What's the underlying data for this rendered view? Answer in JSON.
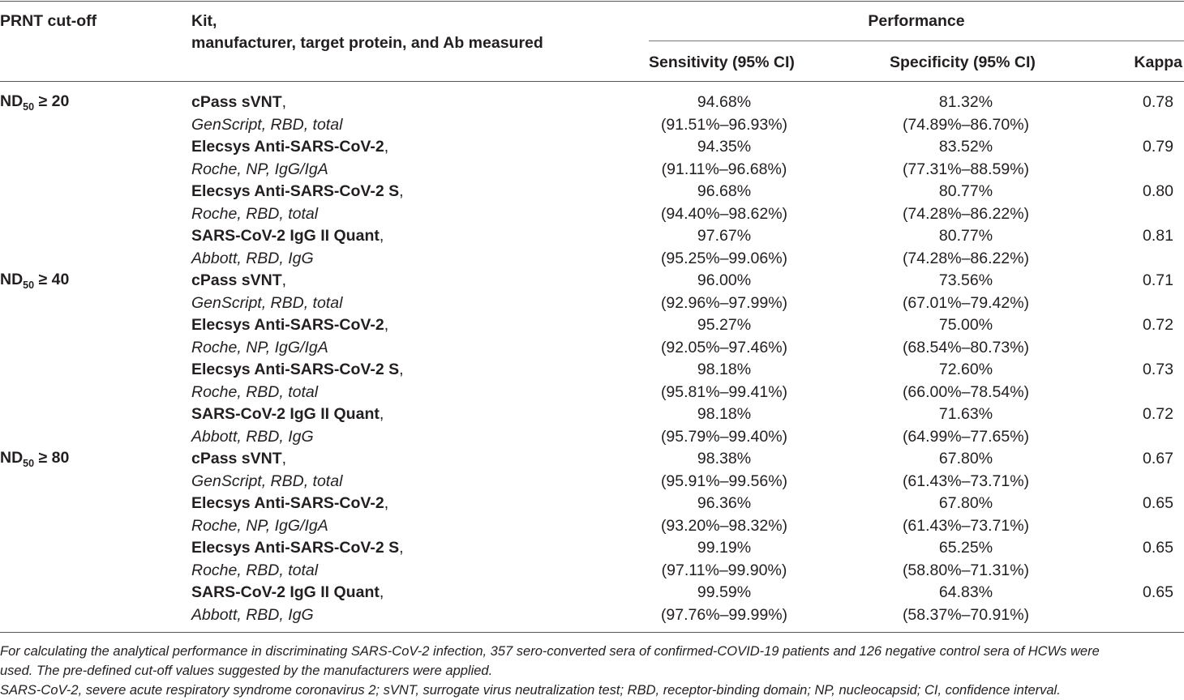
{
  "header": {
    "cutoff": "PRNT cut-off",
    "kit_line1": "Kit,",
    "kit_line2": "manufacturer, target protein, and Ab measured",
    "performance": "Performance",
    "sensitivity": "Sensitivity (95% CI)",
    "specificity": "Specificity (95% CI)",
    "kappa": "Kappa"
  },
  "groups": [
    {
      "cutoff_prefix": "ND",
      "cutoff_sub": "50",
      "cutoff_suffix": " ≥ 20",
      "rows": [
        {
          "kit": "cPass sVNT",
          "details": "GenScript, RBD, total",
          "sens": "94.68%",
          "sens_ci": "(91.51%–96.93%)",
          "spec": "81.32%",
          "spec_ci": "(74.89%–86.70%)",
          "kappa": "0.78"
        },
        {
          "kit": "Elecsys Anti-SARS-CoV-2",
          "details": "Roche, NP, IgG/IgA",
          "sens": "94.35%",
          "sens_ci": "(91.11%–96.68%)",
          "spec": "83.52%",
          "spec_ci": "(77.31%–88.59%)",
          "kappa": "0.79"
        },
        {
          "kit": "Elecsys Anti-SARS-CoV-2 S",
          "details": "Roche, RBD, total",
          "sens": "96.68%",
          "sens_ci": "(94.40%–98.62%)",
          "spec": "80.77%",
          "spec_ci": "(74.28%–86.22%)",
          "kappa": "0.80"
        },
        {
          "kit": "SARS-CoV-2 IgG II Quant",
          "details": "Abbott, RBD, IgG",
          "sens": "97.67%",
          "sens_ci": "(95.25%–99.06%)",
          "spec": "80.77%",
          "spec_ci": "(74.28%–86.22%)",
          "kappa": "0.81"
        }
      ]
    },
    {
      "cutoff_prefix": "ND",
      "cutoff_sub": "50",
      "cutoff_suffix": " ≥ 40",
      "rows": [
        {
          "kit": "cPass sVNT",
          "details": "GenScript, RBD, total",
          "sens": "96.00%",
          "sens_ci": "(92.96%–97.99%)",
          "spec": "73.56%",
          "spec_ci": "(67.01%–79.42%)",
          "kappa": "0.71"
        },
        {
          "kit": "Elecsys Anti-SARS-CoV-2",
          "details": "Roche, NP, IgG/IgA",
          "sens": "95.27%",
          "sens_ci": "(92.05%–97.46%)",
          "spec": "75.00%",
          "spec_ci": "(68.54%–80.73%)",
          "kappa": "0.72"
        },
        {
          "kit": "Elecsys Anti-SARS-CoV-2 S",
          "details": "Roche, RBD, total",
          "sens": "98.18%",
          "sens_ci": "(95.81%–99.41%)",
          "spec": "72.60%",
          "spec_ci": "(66.00%–78.54%)",
          "kappa": "0.73"
        },
        {
          "kit": "SARS-CoV-2 IgG II Quant",
          "details": "Abbott, RBD, IgG",
          "sens": "98.18%",
          "sens_ci": "(95.79%–99.40%)",
          "spec": "71.63%",
          "spec_ci": "(64.99%–77.65%)",
          "kappa": "0.72"
        }
      ]
    },
    {
      "cutoff_prefix": "ND",
      "cutoff_sub": "50",
      "cutoff_suffix": " ≥ 80",
      "rows": [
        {
          "kit": "cPass sVNT",
          "details": "GenScript, RBD, total",
          "sens": "98.38%",
          "sens_ci": "(95.91%–99.56%)",
          "spec": "67.80%",
          "spec_ci": "(61.43%–73.71%)",
          "kappa": "0.67"
        },
        {
          "kit": "Elecsys Anti-SARS-CoV-2",
          "details": "Roche, NP, IgG/IgA",
          "sens": "96.36%",
          "sens_ci": "(93.20%–98.32%)",
          "spec": "67.80%",
          "spec_ci": "(61.43%–73.71%)",
          "kappa": "0.65"
        },
        {
          "kit": "Elecsys Anti-SARS-CoV-2 S",
          "details": "Roche, RBD, total",
          "sens": "99.19%",
          "sens_ci": "(97.11%–99.90%)",
          "spec": "65.25%",
          "spec_ci": "(58.80%–71.31%)",
          "kappa": "0.65"
        },
        {
          "kit": "SARS-CoV-2 IgG II Quant",
          "details": "Abbott, RBD, IgG",
          "sens": "99.59%",
          "sens_ci": "(97.76%–99.99%)",
          "spec": "64.83%",
          "spec_ci": "(58.37%–70.91%)",
          "kappa": "0.65"
        }
      ]
    }
  ],
  "footnotes": {
    "line1": "For calculating the analytical performance in discriminating SARS-CoV-2 infection, 357 sero-converted sera of confirmed-COVID-19 patients and 126 negative control sera of HCWs were",
    "line2": "used. The pre-defined cut-off values suggested by the manufacturers were applied.",
    "line3": "SARS-CoV-2, severe acute respiratory syndrome coronavirus 2; sVNT, surrogate virus neutralization test; RBD, receptor-binding domain; NP, nucleocapsid; CI, confidence interval."
  }
}
